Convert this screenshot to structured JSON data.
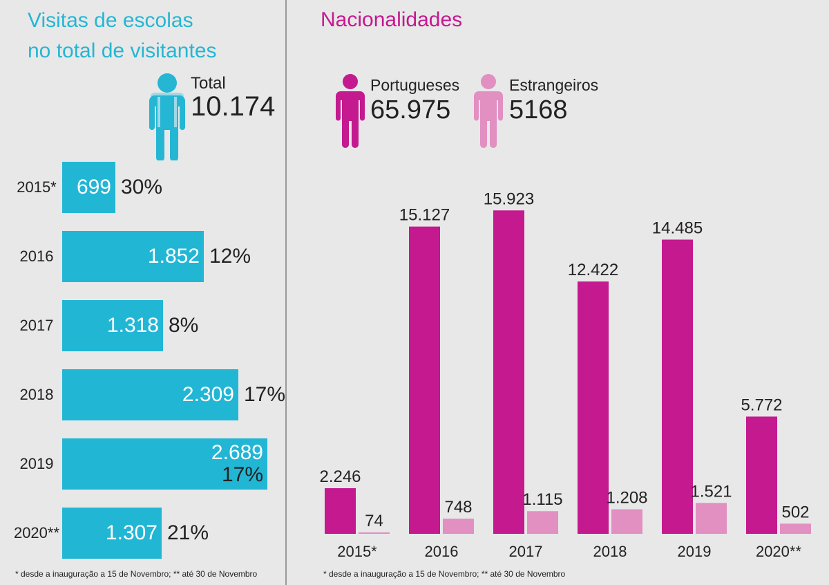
{
  "left": {
    "title_line1": "Visitas de escolas",
    "title_line2": "no total de visitantes",
    "total_label": "Total",
    "total_value": "10.174",
    "footnote": "* desde a inauguração a 15 de Novembro; ** até 30 de Novembro",
    "colors": {
      "bar": "#22b6d5",
      "title": "#25b6d3",
      "icon": "#25b6d3"
    }
  },
  "right": {
    "title": "Nacionalidades",
    "legend": [
      {
        "label": "Portugueses",
        "value": "65.975",
        "color": "#c4198f",
        "icon": "person-icon"
      },
      {
        "label": "Estrangeiros",
        "value": "5168",
        "color": "#e28fc2",
        "icon": "person-icon"
      }
    ],
    "footnote": "* desde a inauguração a 15 de Novembro; ** até 30 de Novembro"
  },
  "chart_data": [
    {
      "type": "bar",
      "orientation": "horizontal",
      "title": "Visitas de escolas no total de visitantes",
      "categories": [
        "2015*",
        "2016",
        "2017",
        "2018",
        "2019",
        "2020**"
      ],
      "values": [
        699,
        1852,
        1318,
        2309,
        2689,
        1307
      ],
      "value_labels": [
        "699",
        "1.852",
        "1.318",
        "2.309",
        "2.689",
        "1.307"
      ],
      "percent_labels": [
        "30%",
        "12%",
        "8%",
        "17%",
        "17%",
        "21%"
      ],
      "xlim": [
        0,
        3000
      ]
    },
    {
      "type": "bar",
      "title": "Nacionalidades",
      "categories": [
        "2015*",
        "2016",
        "2017",
        "2018",
        "2019",
        "2020**"
      ],
      "series": [
        {
          "name": "Portugueses",
          "values": [
            2246,
            15127,
            15923,
            12422,
            14485,
            5772
          ],
          "labels": [
            "2.246",
            "15.127",
            "15.923",
            "12.422",
            "14.485",
            "5.772"
          ],
          "color": "#c4198f"
        },
        {
          "name": "Estrangeiros",
          "values": [
            74,
            748,
            1115,
            1208,
            1521,
            502
          ],
          "labels": [
            "74",
            "748",
            "1.115",
            "1.208",
            "1.521",
            "502"
          ],
          "color": "#e28fc2"
        }
      ],
      "ylim": [
        0,
        16000
      ],
      "grid": false
    }
  ]
}
